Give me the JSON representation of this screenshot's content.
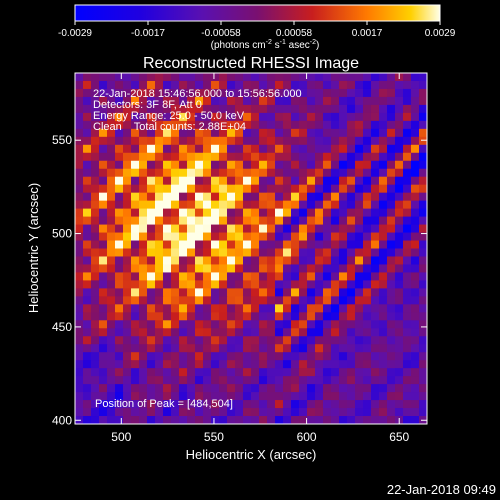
{
  "chart_data": [
    {
      "type": "heatmap",
      "title": "Reconstructed RHESSI Image",
      "xlabel": "Heliocentric X (arcsec)",
      "ylabel": "Heliocentric Y (arcsec)",
      "xlim": [
        475,
        665
      ],
      "ylim": [
        398,
        586
      ],
      "xticks": [
        500,
        550,
        600,
        650
      ],
      "yticks": [
        400,
        450,
        500,
        550
      ],
      "colorbar": {
        "ticks": [
          "-0.0029",
          "-0.0017",
          "-0.00058",
          "0.00058",
          "0.0017",
          "0.0029"
        ],
        "units_parts": [
          "(photons cm",
          "-2",
          " s",
          "-1",
          " asec",
          "-2",
          ")"
        ],
        "range": [
          -0.0029,
          0.0029
        ]
      },
      "peak_position": [
        484,
        504
      ],
      "grid": false
    }
  ],
  "annotations": {
    "line1": "22-Jan-2018 15:46:56.000 to 15:56:56.000",
    "line2": "Detectors: 3F 8F, Att 0",
    "line3": "Energy Range: 25.0 - 50.0 keV",
    "line4": "Clean    Total counts: 2.88E+04",
    "peak": "Position of Peak = [484,504]"
  },
  "footer": {
    "timestamp": "22-Jan-2018 09:49"
  }
}
